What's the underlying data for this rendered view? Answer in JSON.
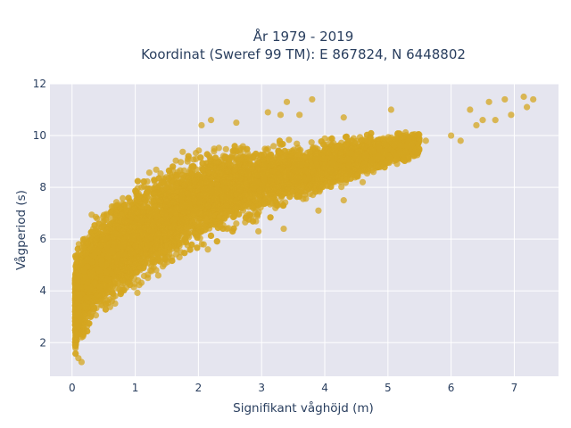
{
  "chart_data": {
    "type": "scatter",
    "title_line1": "År 1979 - 2019",
    "title_line2": "Koordinat (Sweref 99 TM): E 867824, N 6448802",
    "xlabel": "Signifikant våghöjd (m)",
    "ylabel": "Vågperiod (s)",
    "xlim": [
      -0.35,
      7.7
    ],
    "ylim": [
      0.7,
      12.0
    ],
    "xticks": [
      0,
      1,
      2,
      3,
      4,
      5,
      6,
      7
    ],
    "yticks": [
      2,
      4,
      6,
      8,
      10,
      12
    ],
    "grid": true,
    "marker_color": "#d4a520",
    "plot_background": "#e5e5ef",
    "cloud_envelope": {
      "x": [
        0.05,
        0.1,
        0.2,
        0.3,
        0.5,
        0.75,
        1.0,
        1.5,
        2.0,
        2.5,
        3.0,
        3.5,
        4.0,
        4.5,
        5.0,
        5.5
      ],
      "y_min": [
        1.2,
        1.4,
        1.8,
        2.2,
        2.7,
        3.2,
        3.7,
        4.6,
        5.4,
        6.0,
        6.6,
        7.1,
        7.6,
        8.1,
        8.6,
        9.0
      ],
      "y_max": [
        5.6,
        6.0,
        6.5,
        7.0,
        7.5,
        8.0,
        8.5,
        9.2,
        9.7,
        10.0,
        10.0,
        10.0,
        10.1,
        10.2,
        10.2,
        10.3
      ]
    },
    "outliers": [
      {
        "x": 7.15,
        "y": 11.5
      },
      {
        "x": 7.3,
        "y": 11.4
      },
      {
        "x": 7.2,
        "y": 11.1
      },
      {
        "x": 6.95,
        "y": 10.8
      },
      {
        "x": 6.85,
        "y": 11.4
      },
      {
        "x": 6.6,
        "y": 11.3
      },
      {
        "x": 6.5,
        "y": 10.6
      },
      {
        "x": 6.7,
        "y": 10.6
      },
      {
        "x": 6.3,
        "y": 11.0
      },
      {
        "x": 6.4,
        "y": 10.4
      },
      {
        "x": 5.05,
        "y": 11.0
      },
      {
        "x": 6.0,
        "y": 10.0
      },
      {
        "x": 6.15,
        "y": 9.8
      },
      {
        "x": 5.3,
        "y": 9.6
      },
      {
        "x": 5.6,
        "y": 9.8
      },
      {
        "x": 3.8,
        "y": 11.4
      },
      {
        "x": 3.4,
        "y": 11.3
      },
      {
        "x": 3.3,
        "y": 10.8
      },
      {
        "x": 2.2,
        "y": 10.6
      },
      {
        "x": 2.05,
        "y": 10.4
      },
      {
        "x": 2.6,
        "y": 10.5
      },
      {
        "x": 3.1,
        "y": 10.9
      },
      {
        "x": 3.6,
        "y": 10.8
      },
      {
        "x": 4.3,
        "y": 10.7
      },
      {
        "x": 2.6,
        "y": 6.6
      },
      {
        "x": 2.95,
        "y": 6.3
      },
      {
        "x": 3.35,
        "y": 6.4
      },
      {
        "x": 3.9,
        "y": 7.1
      },
      {
        "x": 4.3,
        "y": 7.5
      },
      {
        "x": 4.6,
        "y": 8.2
      },
      {
        "x": 4.95,
        "y": 8.9
      },
      {
        "x": 1.2,
        "y": 4.5
      },
      {
        "x": 1.7,
        "y": 5.3
      },
      {
        "x": 2.15,
        "y": 5.6
      },
      {
        "x": 0.15,
        "y": 1.25
      },
      {
        "x": 0.1,
        "y": 1.4
      }
    ]
  }
}
